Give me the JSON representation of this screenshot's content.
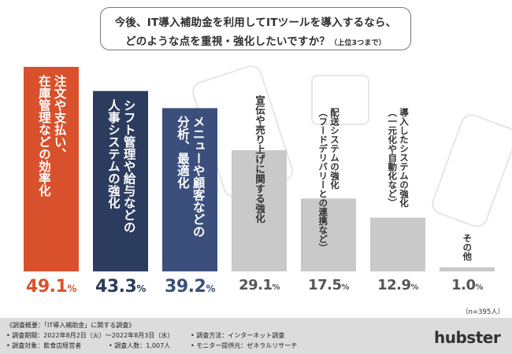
{
  "title": {
    "line1": "今後、IT導入補助金を利用してITツールを導入するなら、",
    "line2": "どのような点を重視・強化したいですか？",
    "note": "（上位3つまで）"
  },
  "chart_data": {
    "type": "bar",
    "categories": [
      "注文や支払い、\n在庫管理などの効率化",
      "シフト管理や給与などの\n人事システムの強化",
      "メニューや顧客などの\n分析、最適化",
      "宣伝や売り上げに関する強化",
      "配送システムの強化\n（フードデリバリーとの連携など）",
      "導入したシステムの強化\n（一元化や自動化など）",
      "その他"
    ],
    "values": [
      49.1,
      43.3,
      39.2,
      29.1,
      17.5,
      12.9,
      1.0
    ],
    "value_labels": [
      "49.1",
      "43.3",
      "39.2",
      "29.1",
      "17.5",
      "12.9",
      "1.0"
    ],
    "unit": "%",
    "ylim": [
      0,
      55
    ],
    "colors": [
      "#d9512c",
      "#2b3c5e",
      "#3c4f7c",
      "#c9c9c9",
      "#c9c9c9",
      "#c9c9c9",
      "#c9c9c9"
    ],
    "text_colors": [
      "#d9512c",
      "#2b3c5e",
      "#3c4f7c",
      "#555555",
      "#555555",
      "#555555",
      "#555555"
    ],
    "label_colors": [
      "#ffffff",
      "#ffffff",
      "#ffffff",
      "#333333",
      "#333333",
      "#333333",
      "#333333"
    ],
    "sample_note": "（n=395人）",
    "grid": false,
    "legend": "none"
  },
  "footer": {
    "heading": "《調査概要：「IT導入補助金」に関する調査》",
    "period": "• 調査期間：2022年8月2日（火）〜2022年8月3日（水）",
    "target": "• 調査対象：飲食店経営者",
    "count": "• 調査人数：1,007人",
    "method": "• 調査方法：インターネット調査",
    "provider": "• モニター提供元：ゼネラルリサーチ",
    "logo": "hubster"
  }
}
